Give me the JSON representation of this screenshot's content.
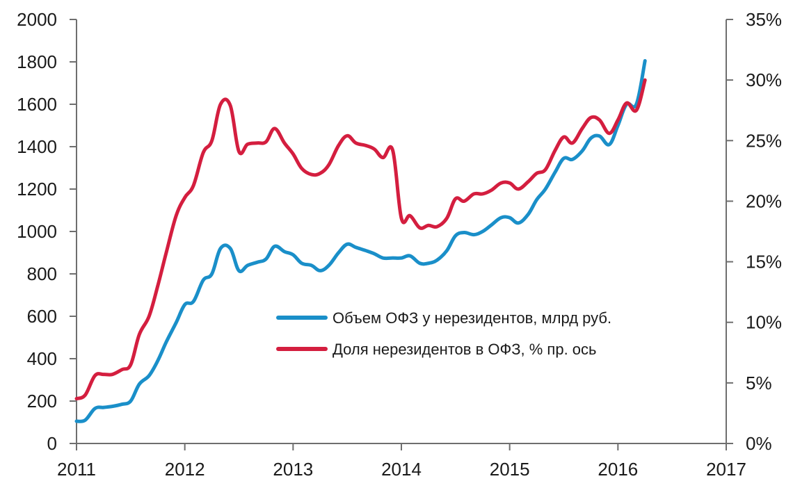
{
  "chart_data": {
    "type": "line",
    "title": "",
    "xlabel": "",
    "ylabel": "",
    "y2label": "",
    "xlim": [
      2011,
      2017
    ],
    "ylim": [
      0,
      2000
    ],
    "y2lim": [
      0,
      35
    ],
    "grid": false,
    "legend_position": "center-right",
    "x_ticks": [
      "2011",
      "2012",
      "2013",
      "2014",
      "2015",
      "2016",
      "2017"
    ],
    "y_ticks": [
      "0",
      "200",
      "400",
      "600",
      "800",
      "1000",
      "1200",
      "1400",
      "1600",
      "1800",
      "2000"
    ],
    "y2_ticks": [
      "0%",
      "5%",
      "10%",
      "15%",
      "20%",
      "25%",
      "30%",
      "35%"
    ],
    "series": [
      {
        "name": "Объем ОФЗ у нерезидентов, млрд руб.",
        "axis": "left",
        "color": "#1a8fc9",
        "points": [
          [
            2011.0,
            105
          ],
          [
            2011.08,
            110
          ],
          [
            2011.17,
            165
          ],
          [
            2011.25,
            170
          ],
          [
            2011.33,
            175
          ],
          [
            2011.42,
            185
          ],
          [
            2011.5,
            200
          ],
          [
            2011.58,
            280
          ],
          [
            2011.67,
            320
          ],
          [
            2011.75,
            390
          ],
          [
            2011.83,
            480
          ],
          [
            2011.92,
            570
          ],
          [
            2012.0,
            655
          ],
          [
            2012.08,
            670
          ],
          [
            2012.17,
            770
          ],
          [
            2012.25,
            800
          ],
          [
            2012.33,
            920
          ],
          [
            2012.42,
            920
          ],
          [
            2012.5,
            815
          ],
          [
            2012.58,
            840
          ],
          [
            2012.67,
            855
          ],
          [
            2012.75,
            870
          ],
          [
            2012.83,
            930
          ],
          [
            2012.92,
            905
          ],
          [
            2013.0,
            890
          ],
          [
            2013.08,
            850
          ],
          [
            2013.17,
            840
          ],
          [
            2013.25,
            815
          ],
          [
            2013.33,
            840
          ],
          [
            2013.42,
            900
          ],
          [
            2013.5,
            940
          ],
          [
            2013.58,
            925
          ],
          [
            2013.67,
            910
          ],
          [
            2013.75,
            895
          ],
          [
            2013.83,
            875
          ],
          [
            2013.92,
            875
          ],
          [
            2014.0,
            875
          ],
          [
            2014.08,
            885
          ],
          [
            2014.17,
            850
          ],
          [
            2014.25,
            850
          ],
          [
            2014.33,
            865
          ],
          [
            2014.42,
            910
          ],
          [
            2014.5,
            980
          ],
          [
            2014.58,
            995
          ],
          [
            2014.67,
            985
          ],
          [
            2014.75,
            1000
          ],
          [
            2014.83,
            1030
          ],
          [
            2014.92,
            1065
          ],
          [
            2015.0,
            1065
          ],
          [
            2015.08,
            1040
          ],
          [
            2015.17,
            1080
          ],
          [
            2015.25,
            1150
          ],
          [
            2015.33,
            1200
          ],
          [
            2015.42,
            1280
          ],
          [
            2015.5,
            1345
          ],
          [
            2015.58,
            1340
          ],
          [
            2015.67,
            1380
          ],
          [
            2015.75,
            1440
          ],
          [
            2015.83,
            1450
          ],
          [
            2015.92,
            1410
          ],
          [
            2016.0,
            1500
          ],
          [
            2016.08,
            1600
          ],
          [
            2016.17,
            1600
          ],
          [
            2016.25,
            1805
          ]
        ]
      },
      {
        "name": "Доля нерезидентов в ОФЗ, % пр. ось",
        "axis": "right",
        "color": "#d41e3f",
        "points": [
          [
            2011.0,
            3.7
          ],
          [
            2011.08,
            4.0
          ],
          [
            2011.17,
            5.6
          ],
          [
            2011.25,
            5.7
          ],
          [
            2011.33,
            5.7
          ],
          [
            2011.42,
            6.1
          ],
          [
            2011.5,
            6.5
          ],
          [
            2011.58,
            9.0
          ],
          [
            2011.67,
            10.5
          ],
          [
            2011.75,
            13.0
          ],
          [
            2011.83,
            15.8
          ],
          [
            2011.92,
            18.8
          ],
          [
            2012.0,
            20.3
          ],
          [
            2012.08,
            21.3
          ],
          [
            2012.17,
            24.0
          ],
          [
            2012.25,
            25.0
          ],
          [
            2012.33,
            28.0
          ],
          [
            2012.42,
            27.9
          ],
          [
            2012.5,
            24.1
          ],
          [
            2012.58,
            24.7
          ],
          [
            2012.67,
            24.8
          ],
          [
            2012.75,
            24.9
          ],
          [
            2012.83,
            26.0
          ],
          [
            2012.92,
            24.8
          ],
          [
            2013.0,
            23.9
          ],
          [
            2013.08,
            22.7
          ],
          [
            2013.17,
            22.2
          ],
          [
            2013.25,
            22.3
          ],
          [
            2013.33,
            23.0
          ],
          [
            2013.42,
            24.6
          ],
          [
            2013.5,
            25.4
          ],
          [
            2013.58,
            24.8
          ],
          [
            2013.67,
            24.6
          ],
          [
            2013.75,
            24.3
          ],
          [
            2013.83,
            23.6
          ],
          [
            2013.92,
            24.2
          ],
          [
            2014.0,
            18.6
          ],
          [
            2014.08,
            18.8
          ],
          [
            2014.17,
            17.8
          ],
          [
            2014.25,
            18.0
          ],
          [
            2014.33,
            17.9
          ],
          [
            2014.42,
            18.6
          ],
          [
            2014.5,
            20.2
          ],
          [
            2014.58,
            20.0
          ],
          [
            2014.67,
            20.6
          ],
          [
            2014.75,
            20.6
          ],
          [
            2014.83,
            20.9
          ],
          [
            2014.92,
            21.5
          ],
          [
            2015.0,
            21.5
          ],
          [
            2015.08,
            21.0
          ],
          [
            2015.17,
            21.6
          ],
          [
            2015.25,
            22.3
          ],
          [
            2015.33,
            22.6
          ],
          [
            2015.42,
            24.2
          ],
          [
            2015.5,
            25.3
          ],
          [
            2015.58,
            24.8
          ],
          [
            2015.67,
            26.0
          ],
          [
            2015.75,
            26.9
          ],
          [
            2015.83,
            26.7
          ],
          [
            2015.92,
            25.6
          ],
          [
            2016.0,
            26.7
          ],
          [
            2016.08,
            28.1
          ],
          [
            2016.17,
            27.5
          ],
          [
            2016.25,
            30.0
          ]
        ]
      }
    ]
  }
}
